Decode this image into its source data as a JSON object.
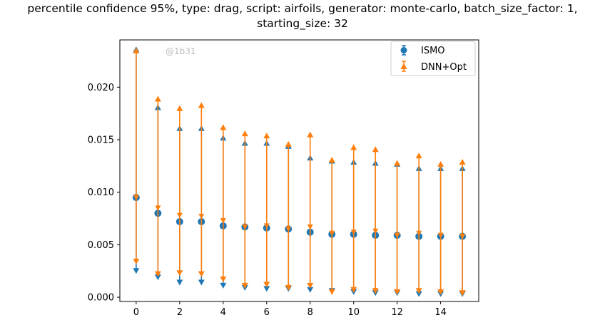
{
  "chart_data": {
    "type": "errorbar",
    "title_line1": "percentile confidence 95%, type: drag, script: airfoils, generator: monte-carlo, batch_size_factor: 1,",
    "title_line2": "starting_size: 32",
    "watermark": "@1b31",
    "xlabel": "",
    "ylabel": "",
    "xlim": [
      -0.75,
      15.75
    ],
    "ylim": [
      -0.0004,
      0.0245
    ],
    "x_ticks": [
      0,
      2,
      4,
      6,
      8,
      10,
      12,
      14
    ],
    "y_ticks": [
      0.0,
      0.005,
      0.01,
      0.015,
      0.02
    ],
    "y_tick_labels": [
      "0.000",
      "0.005",
      "0.010",
      "0.015",
      "0.020"
    ],
    "grid": false,
    "legend_position": "top-right",
    "series": [
      {
        "name": "ISMO",
        "color": "#1f77b4",
        "marker": "circle",
        "x": [
          0,
          1,
          2,
          3,
          4,
          5,
          6,
          7,
          8,
          9,
          10,
          11,
          12,
          13,
          14,
          15
        ],
        "y": [
          0.0095,
          0.008,
          0.0072,
          0.0072,
          0.0068,
          0.0067,
          0.0066,
          0.0065,
          0.0062,
          0.006,
          0.006,
          0.0059,
          0.0059,
          0.0058,
          0.0058,
          0.0058
        ],
        "lower": [
          0.0025,
          0.0019,
          0.0014,
          0.0014,
          0.0011,
          0.0009,
          0.0008,
          0.0008,
          0.0007,
          0.0006,
          0.0005,
          0.0004,
          0.0004,
          0.0003,
          0.0003,
          0.0003
        ],
        "upper": [
          0.0236,
          0.0181,
          0.0161,
          0.0161,
          0.0152,
          0.0147,
          0.0147,
          0.0144,
          0.0133,
          0.013,
          0.0129,
          0.0128,
          0.0127,
          0.0123,
          0.0123,
          0.0123
        ]
      },
      {
        "name": "DNN+Opt",
        "color": "#ff7f0e",
        "marker": "star",
        "x": [
          0,
          1,
          2,
          3,
          4,
          5,
          6,
          7,
          8,
          9,
          10,
          11,
          12,
          13,
          14,
          15
        ],
        "y": [
          0.0095,
          0.0085,
          0.0078,
          0.0077,
          0.0073,
          0.0067,
          0.0068,
          0.0065,
          0.0067,
          0.0061,
          0.0062,
          0.0063,
          0.0059,
          0.0061,
          0.0059,
          0.0058
        ],
        "lower": [
          0.0034,
          0.0022,
          0.0023,
          0.0022,
          0.0017,
          0.0011,
          0.0012,
          0.0009,
          0.0011,
          0.0005,
          0.0007,
          0.0006,
          0.0005,
          0.0006,
          0.0005,
          0.0004
        ],
        "upper": [
          0.0235,
          0.0189,
          0.018,
          0.0183,
          0.0162,
          0.0156,
          0.0154,
          0.0146,
          0.0155,
          0.0131,
          0.0143,
          0.0141,
          0.0128,
          0.0135,
          0.0127,
          0.0129
        ]
      }
    ]
  }
}
